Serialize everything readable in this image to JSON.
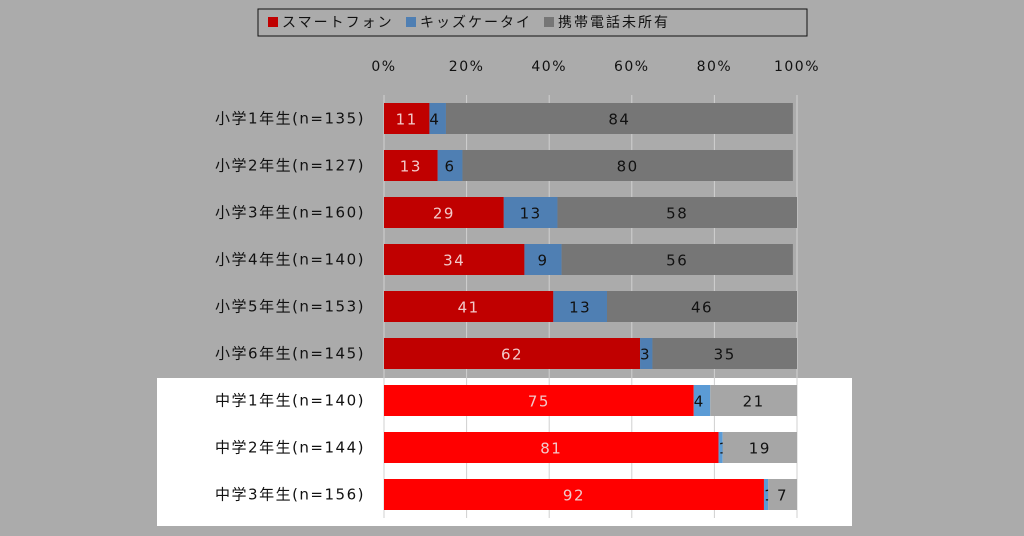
{
  "chart_data": {
    "type": "bar",
    "orientation": "horizontal",
    "stacked": true,
    "categories": [
      "小学1年生(n=135)",
      "小学2年生(n=127)",
      "小学3年生(n=160)",
      "小学4年生(n=140)",
      "小学5年生(n=153)",
      "小学6年生(n=145)",
      "中学1年生(n=140)",
      "中学2年生(n=144)",
      "中学3年生(n=156)"
    ],
    "series": [
      {
        "name": "スマートフォン",
        "values": [
          11,
          13,
          29,
          34,
          41,
          62,
          75,
          81,
          92
        ]
      },
      {
        "name": "キッズケータイ",
        "values": [
          4,
          6,
          13,
          9,
          13,
          3,
          4,
          1,
          1
        ]
      },
      {
        "name": "携帯電話未所有",
        "values": [
          84,
          80,
          58,
          56,
          46,
          35,
          21,
          19,
          7
        ]
      }
    ],
    "xlim": [
      0,
      100
    ],
    "x_ticks": [
      "0%",
      "20%",
      "40%",
      "60%",
      "80%",
      "100%"
    ],
    "grid": true,
    "legend_position": "top",
    "highlighted_categories": [
      6,
      7,
      8
    ],
    "colors": {
      "background": "#ababab",
      "highlight_panel": "#ffffff",
      "smartphone_elementary": "#c00000",
      "smartphone_junior_high": "#ff0000",
      "kids_phone_elementary": "#4f7fb3",
      "kids_phone_junior_high": "#5b9bd5",
      "no_phone_elementary": "#767676",
      "no_phone_junior_high": "#a6a6a6"
    }
  }
}
